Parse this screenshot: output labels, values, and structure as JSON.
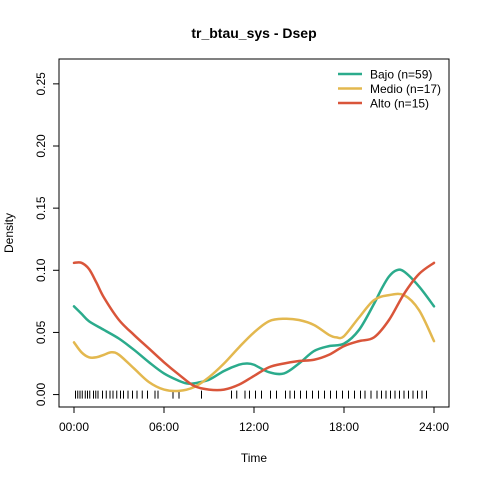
{
  "chart_data": {
    "type": "line",
    "title": "tr_btau_sys - Dsep",
    "xlabel": "Time",
    "ylabel": "Density",
    "xlim": [
      -1,
      25
    ],
    "ylim": [
      -0.01,
      0.27
    ],
    "x_ticks": [
      0,
      6,
      12,
      18,
      24
    ],
    "x_tick_labels": [
      "00:00",
      "06:00",
      "12:00",
      "18:00",
      "24:00"
    ],
    "y_ticks": [
      0.0,
      0.05,
      0.1,
      0.15,
      0.2,
      0.25
    ],
    "y_tick_labels": [
      "0.00",
      "0.05",
      "0.10",
      "0.15",
      "0.20",
      "0.25"
    ],
    "legend_position": "top-right",
    "series": [
      {
        "name": "Bajo (n=59)",
        "color": "#2bab8c",
        "x": [
          0,
          0.5,
          1,
          2,
          3,
          4,
          5,
          6,
          7,
          7.5,
          8,
          9,
          10,
          11,
          11.5,
          12,
          13,
          14,
          15,
          16,
          17,
          18,
          19,
          20,
          20.5,
          21,
          21.5,
          22,
          23,
          24
        ],
        "y": [
          0.071,
          0.065,
          0.059,
          0.052,
          0.045,
          0.036,
          0.026,
          0.017,
          0.011,
          0.009,
          0.009,
          0.012,
          0.019,
          0.024,
          0.025,
          0.024,
          0.018,
          0.017,
          0.025,
          0.035,
          0.039,
          0.041,
          0.052,
          0.073,
          0.085,
          0.095,
          0.1,
          0.099,
          0.087,
          0.071
        ]
      },
      {
        "name": "Medio (n=17)",
        "color": "#e3b84f",
        "x": [
          0,
          0.5,
          1,
          1.5,
          2,
          2.5,
          3,
          4,
          5,
          6,
          7,
          8,
          9,
          10,
          11,
          12,
          13,
          14,
          15,
          16,
          17,
          17.5,
          18,
          19,
          20,
          21,
          22,
          23,
          24
        ],
        "y": [
          0.042,
          0.034,
          0.03,
          0.03,
          0.032,
          0.034,
          0.032,
          0.021,
          0.01,
          0.004,
          0.003,
          0.006,
          0.014,
          0.025,
          0.038,
          0.05,
          0.059,
          0.061,
          0.06,
          0.056,
          0.048,
          0.046,
          0.047,
          0.062,
          0.076,
          0.08,
          0.08,
          0.068,
          0.043
        ]
      },
      {
        "name": "Alto (n=15)",
        "color": "#d9553a",
        "x": [
          0,
          0.5,
          1,
          1.5,
          2,
          3,
          4,
          5,
          6,
          7,
          8,
          9,
          10,
          11,
          12,
          13,
          14,
          15,
          16,
          17,
          18,
          19,
          20,
          21,
          22,
          23,
          24
        ],
        "y": [
          0.106,
          0.106,
          0.101,
          0.09,
          0.078,
          0.06,
          0.048,
          0.037,
          0.026,
          0.016,
          0.007,
          0.004,
          0.004,
          0.008,
          0.015,
          0.022,
          0.025,
          0.027,
          0.028,
          0.032,
          0.039,
          0.043,
          0.046,
          0.06,
          0.081,
          0.097,
          0.106
        ]
      }
    ],
    "rug_x": [
      0.1,
      0.25,
      0.4,
      0.55,
      0.75,
      0.9,
      1.05,
      1.3,
      1.45,
      1.6,
      1.9,
      2.15,
      2.4,
      2.6,
      2.85,
      3.1,
      3.3,
      3.6,
      3.9,
      4.2,
      4.55,
      4.9,
      5.4,
      5.6,
      6.6,
      7.0,
      8.5,
      10.5,
      10.85,
      11.4,
      11.7,
      12.1,
      12.5,
      13.1,
      13.5,
      14.1,
      14.4,
      14.7,
      15.1,
      15.5,
      15.9,
      16.3,
      16.7,
      17.1,
      17.5,
      17.9,
      18.3,
      18.7,
      19.1,
      19.4,
      19.8,
      20.2,
      20.5,
      20.8,
      21.1,
      21.4,
      21.7,
      22.0,
      22.3,
      22.6,
      22.9,
      23.2,
      23.5
    ]
  }
}
